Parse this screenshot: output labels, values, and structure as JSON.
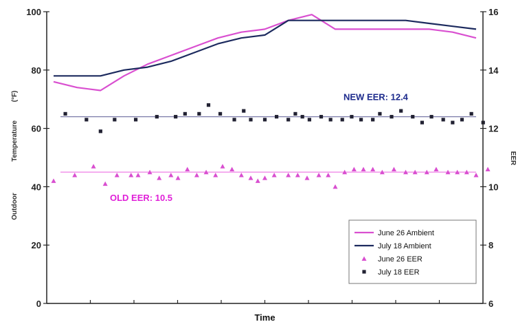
{
  "chart_data": {
    "type": "line",
    "title": "",
    "xlabel": "Time",
    "ylabel": "Outdoor Temperature (°F)",
    "ylabel_parts": [
      "Outdoor",
      "Temperature",
      "(°F)"
    ],
    "y2label": "EER",
    "ylim": [
      0,
      100
    ],
    "y2lim": [
      6,
      16
    ],
    "yticks": [
      "0",
      "20",
      "40",
      "60",
      "80",
      "100"
    ],
    "y2ticks": [
      "6",
      "8",
      "10",
      "12",
      "14",
      "16"
    ],
    "legend_position": "bottom-right",
    "x_count": 19,
    "series": [
      {
        "name": "June 26 Ambient",
        "axis": "left",
        "style": "line",
        "color": "#d94fd0",
        "x": [
          0,
          1,
          2,
          3,
          4,
          5,
          6,
          7,
          8,
          9,
          10,
          11,
          12,
          13,
          14,
          15,
          16,
          17,
          18
        ],
        "values": [
          76,
          74,
          73,
          78,
          82,
          85,
          88,
          91,
          93,
          94,
          97,
          99,
          94,
          94,
          94,
          94,
          94,
          93,
          91
        ]
      },
      {
        "name": "July 18 Ambient",
        "axis": "left",
        "style": "line",
        "color": "#1c2a5e",
        "x": [
          0,
          1,
          2,
          3,
          4,
          5,
          6,
          7,
          8,
          9,
          10,
          11,
          12,
          13,
          14,
          15,
          16,
          17,
          18
        ],
        "values": [
          78,
          78,
          78,
          80,
          81,
          83,
          86,
          89,
          91,
          92,
          97,
          97,
          97,
          97,
          97,
          97,
          96,
          95,
          94
        ]
      },
      {
        "name": "June 26 EER",
        "axis": "right",
        "style": "markers",
        "marker": "triangle",
        "color": "#d94fd0",
        "x": [
          0,
          0.9,
          1.7,
          2.2,
          2.7,
          3.3,
          3.6,
          4.1,
          4.5,
          5.0,
          5.3,
          5.7,
          6.1,
          6.5,
          6.9,
          7.2,
          7.6,
          8.0,
          8.4,
          8.7,
          9.0,
          9.4,
          10.0,
          10.4,
          10.8,
          11.3,
          11.7,
          12.0,
          12.4,
          12.8,
          13.2,
          13.6,
          14.0,
          14.5,
          15.0,
          15.4,
          15.9,
          16.3,
          16.8,
          17.2,
          17.6,
          18.0,
          18.5
        ],
        "values": [
          10.2,
          10.4,
          10.7,
          10.1,
          10.4,
          10.4,
          10.4,
          10.5,
          10.3,
          10.4,
          10.3,
          10.6,
          10.4,
          10.5,
          10.4,
          10.7,
          10.6,
          10.4,
          10.3,
          10.2,
          10.3,
          10.4,
          10.4,
          10.4,
          10.3,
          10.4,
          10.4,
          10.0,
          10.5,
          10.6,
          10.6,
          10.6,
          10.5,
          10.6,
          10.5,
          10.5,
          10.5,
          10.6,
          10.5,
          10.5,
          10.5,
          10.4,
          10.6
        ]
      },
      {
        "name": "July 18 EER",
        "axis": "right",
        "style": "markers",
        "marker": "square",
        "color": "#222233",
        "x": [
          0.5,
          1.4,
          2.0,
          2.6,
          3.5,
          4.4,
          5.2,
          5.6,
          6.2,
          6.6,
          7.1,
          7.7,
          8.1,
          8.4,
          9.0,
          9.5,
          10.0,
          10.3,
          10.6,
          10.9,
          11.4,
          11.8,
          12.3,
          12.7,
          13.1,
          13.6,
          13.9,
          14.4,
          14.8,
          15.3,
          15.7,
          16.1,
          16.6,
          17.0,
          17.4,
          17.8,
          18.3
        ],
        "values": [
          12.5,
          12.3,
          11.9,
          12.3,
          12.3,
          12.4,
          12.4,
          12.5,
          12.5,
          12.8,
          12.5,
          12.3,
          12.6,
          12.3,
          12.3,
          12.4,
          12.3,
          12.5,
          12.4,
          12.3,
          12.4,
          12.3,
          12.3,
          12.4,
          12.3,
          12.3,
          12.5,
          12.4,
          12.6,
          12.4,
          12.2,
          12.4,
          12.3,
          12.2,
          12.3,
          12.5,
          12.2
        ]
      }
    ],
    "reference_lines": [
      {
        "label": "NEW EER: 12.4",
        "value": 12.4,
        "axis": "right",
        "color": "#7a7aa8",
        "label_color": "#1c2a8c"
      },
      {
        "label": "OLD EER: 10.5",
        "value": 10.5,
        "axis": "right",
        "color": "#f08ae8",
        "label_color": "#e020d8"
      }
    ],
    "legend": [
      "June 26 Ambient",
      "July 18 Ambient",
      "June 26 EER",
      "July 18 EER"
    ]
  }
}
